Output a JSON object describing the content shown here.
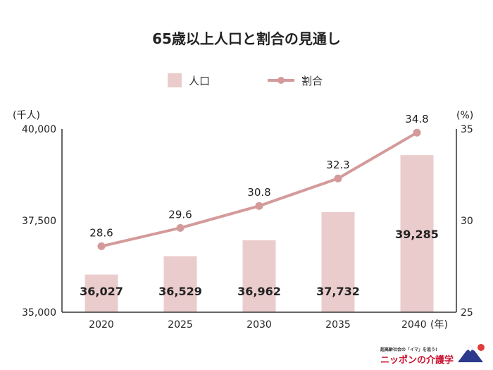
{
  "chart_data": {
    "type": "bar+line",
    "title": "65歳以上人口と割合の見通し",
    "categories": [
      "2020",
      "2025",
      "2030",
      "2035",
      "2040"
    ],
    "x_unit": "(年)",
    "series": [
      {
        "name": "人口",
        "type": "bar",
        "axis": "left",
        "values": [
          36027,
          36529,
          36962,
          37732,
          39285
        ],
        "labels": [
          "36,027",
          "36,529",
          "36,962",
          "37,732",
          "39,285"
        ],
        "color": "#ebcccc"
      },
      {
        "name": "割合",
        "type": "line",
        "axis": "right",
        "values": [
          28.6,
          29.6,
          30.8,
          32.3,
          34.8
        ],
        "labels": [
          "28.6",
          "29.6",
          "30.8",
          "32.3",
          "34.8"
        ],
        "color": "#d49a9a"
      }
    ],
    "y_left": {
      "unit": "(千人)",
      "ylim": [
        35000,
        40000
      ],
      "ticks": [
        35000,
        37500,
        40000
      ],
      "tick_labels": [
        "35,000",
        "37,500",
        "40,000"
      ]
    },
    "y_right": {
      "unit": "(%)",
      "ylim": [
        25,
        35
      ],
      "ticks": [
        25,
        30,
        35
      ],
      "tick_labels": [
        "25",
        "30",
        "35"
      ]
    },
    "legend_position": "top-center",
    "grid": false
  },
  "brand": {
    "tagline": "超高齢社会の「イマ」を追う!",
    "name": "ニッポンの介護学"
  }
}
